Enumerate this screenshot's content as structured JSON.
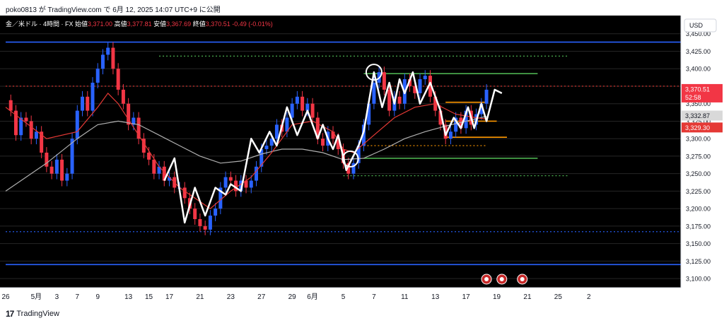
{
  "header": {
    "published_text": "poko0813 が TradingView.com で 6月 12, 2025 14:07 UTC+9 に公開"
  },
  "footer": {
    "brand": "TradingView"
  },
  "legend": {
    "symbol": "金／米ドル · 4時間 · FX",
    "open_label": "始値",
    "open": "3,371.00",
    "high_label": "高値",
    "high": "3,377.81",
    "low_label": "安値",
    "low": "3,367.69",
    "close_label": "終値",
    "close": "3,370.51",
    "change": "-0.49 (-0.01%)"
  },
  "currency_button": "USD",
  "price_labels": {
    "last": "3,370.51",
    "countdown": "52:58",
    "ma_slow": "3,332.87",
    "ma_fast": "3,329.30"
  },
  "colors": {
    "background": "#000000",
    "bull": "#2962ff",
    "bear": "#f23645",
    "ma_fast": "#e53935",
    "ma_slow": "#b0b0b0",
    "support_blue": "#2962ff",
    "green_level": "#4caf50",
    "orange_level": "#ff9800",
    "zigzag": "#ffffff"
  },
  "chart_data": {
    "type": "candlestick",
    "y_ticks": [
      3100,
      3125,
      3150,
      3175,
      3200,
      3225,
      3250,
      3275,
      3300,
      3325,
      3350,
      3375,
      3400,
      3425,
      3450
    ],
    "y_tick_labels": [
      "3,100.00",
      "3,125.00",
      "3,150.00",
      "3,175.00",
      "3,200.00",
      "3,225.00",
      "3,250.00",
      "3,275.00",
      "3,300.00",
      "3,325.00",
      "3,350.00",
      "3,375.00",
      "3,400.00",
      "3,425.00",
      "3,450.00"
    ],
    "ylim": [
      3087,
      3476
    ],
    "x_range": [
      0,
      66
    ],
    "x_ticks": [
      {
        "x": 0,
        "label": "26"
      },
      {
        "x": 3,
        "label": "5月"
      },
      {
        "x": 5,
        "label": "3"
      },
      {
        "x": 7,
        "label": "7"
      },
      {
        "x": 9,
        "label": "9"
      },
      {
        "x": 12,
        "label": "13"
      },
      {
        "x": 14,
        "label": "15"
      },
      {
        "x": 16,
        "label": "17"
      },
      {
        "x": 19,
        "label": "21"
      },
      {
        "x": 22,
        "label": "23"
      },
      {
        "x": 25,
        "label": "27"
      },
      {
        "x": 28,
        "label": "29"
      },
      {
        "x": 30,
        "label": "6月"
      },
      {
        "x": 33,
        "label": "5"
      },
      {
        "x": 36,
        "label": "7"
      },
      {
        "x": 39,
        "label": "11"
      },
      {
        "x": 42,
        "label": "13"
      },
      {
        "x": 45,
        "label": "17"
      },
      {
        "x": 48,
        "label": "19"
      },
      {
        "x": 51,
        "label": "21"
      },
      {
        "x": 54,
        "label": "25"
      },
      {
        "x": 57,
        "label": "2"
      }
    ],
    "close_path": [
      [
        0,
        3355
      ],
      [
        0.5,
        3340
      ],
      [
        1,
        3305
      ],
      [
        1.5,
        3330
      ],
      [
        2,
        3325
      ],
      [
        2.5,
        3300
      ],
      [
        3,
        3310
      ],
      [
        3.5,
        3280
      ],
      [
        4,
        3260
      ],
      [
        4.5,
        3250
      ],
      [
        5,
        3270
      ],
      [
        5.5,
        3240
      ],
      [
        6,
        3250
      ],
      [
        6.5,
        3300
      ],
      [
        7,
        3340
      ],
      [
        7.5,
        3360
      ],
      [
        8,
        3340
      ],
      [
        8.5,
        3380
      ],
      [
        9,
        3400
      ],
      [
        9.5,
        3420
      ],
      [
        10,
        3430
      ],
      [
        10.5,
        3400
      ],
      [
        11,
        3370
      ],
      [
        11.5,
        3350
      ],
      [
        12,
        3320
      ],
      [
        12.5,
        3330
      ],
      [
        13,
        3300
      ],
      [
        13.5,
        3280
      ],
      [
        14,
        3270
      ],
      [
        14.5,
        3250
      ],
      [
        15,
        3260
      ],
      [
        15.5,
        3240
      ],
      [
        16,
        3245
      ],
      [
        16.5,
        3230
      ],
      [
        17,
        3230
      ],
      [
        17.5,
        3215
      ],
      [
        18,
        3200
      ],
      [
        18.5,
        3185
      ],
      [
        19,
        3175
      ],
      [
        19.5,
        3170
      ],
      [
        20,
        3190
      ],
      [
        20.5,
        3200
      ],
      [
        21,
        3230
      ],
      [
        21.5,
        3245
      ],
      [
        22,
        3240
      ],
      [
        22.5,
        3225
      ],
      [
        23,
        3240
      ],
      [
        23.5,
        3230
      ],
      [
        24,
        3240
      ],
      [
        24.5,
        3260
      ],
      [
        25,
        3285
      ],
      [
        25.5,
        3290
      ],
      [
        26,
        3300
      ],
      [
        26.5,
        3320
      ],
      [
        27,
        3310
      ],
      [
        27.5,
        3330
      ],
      [
        28,
        3350
      ],
      [
        28.5,
        3360
      ],
      [
        29,
        3340
      ],
      [
        29.5,
        3350
      ],
      [
        30,
        3330
      ],
      [
        30.5,
        3300
      ],
      [
        31,
        3290
      ],
      [
        31.5,
        3310
      ],
      [
        32,
        3300
      ],
      [
        32.5,
        3285
      ],
      [
        33,
        3265
      ],
      [
        33.5,
        3250
      ],
      [
        34,
        3265
      ],
      [
        34.5,
        3290
      ],
      [
        35,
        3320
      ],
      [
        35.5,
        3350
      ],
      [
        36,
        3380
      ],
      [
        36.5,
        3395
      ],
      [
        37,
        3370
      ],
      [
        37.5,
        3340
      ],
      [
        38,
        3360
      ],
      [
        38.5,
        3350
      ],
      [
        39,
        3385
      ],
      [
        39.5,
        3375
      ],
      [
        40,
        3365
      ],
      [
        40.5,
        3385
      ],
      [
        41,
        3390
      ],
      [
        41.5,
        3360
      ],
      [
        42,
        3340
      ],
      [
        42.5,
        3320
      ],
      [
        43,
        3300
      ],
      [
        43.5,
        3310
      ],
      [
        44,
        3330
      ],
      [
        44.5,
        3315
      ],
      [
        45,
        3340
      ],
      [
        45.5,
        3320
      ],
      [
        46,
        3335
      ],
      [
        46.5,
        3350
      ],
      [
        47,
        3370
      ]
    ],
    "ma_fast_path": [
      [
        0,
        3345
      ],
      [
        4,
        3300
      ],
      [
        7,
        3310
      ],
      [
        9,
        3345
      ],
      [
        10,
        3365
      ],
      [
        11,
        3350
      ],
      [
        13,
        3305
      ],
      [
        15,
        3260
      ],
      [
        17,
        3230
      ],
      [
        19,
        3210
      ],
      [
        20,
        3200
      ],
      [
        22,
        3225
      ],
      [
        24,
        3245
      ],
      [
        26,
        3280
      ],
      [
        28,
        3320
      ],
      [
        30,
        3325
      ],
      [
        32,
        3310
      ],
      [
        33,
        3285
      ],
      [
        34,
        3280
      ],
      [
        36,
        3305
      ],
      [
        38,
        3330
      ],
      [
        40,
        3345
      ],
      [
        42,
        3350
      ],
      [
        44,
        3335
      ],
      [
        46,
        3330
      ],
      [
        47,
        3328
      ]
    ],
    "ma_slow_path": [
      [
        0,
        3225
      ],
      [
        4,
        3265
      ],
      [
        7,
        3300
      ],
      [
        9,
        3320
      ],
      [
        11,
        3325
      ],
      [
        13,
        3320
      ],
      [
        15,
        3305
      ],
      [
        17,
        3290
      ],
      [
        19,
        3275
      ],
      [
        21,
        3265
      ],
      [
        23,
        3268
      ],
      [
        25,
        3278
      ],
      [
        27,
        3285
      ],
      [
        29,
        3285
      ],
      [
        31,
        3280
      ],
      [
        33,
        3270
      ],
      [
        35,
        3272
      ],
      [
        37,
        3285
      ],
      [
        39,
        3300
      ],
      [
        41,
        3310
      ],
      [
        43,
        3318
      ],
      [
        45,
        3325
      ],
      [
        47,
        3332
      ]
    ],
    "zigzag": [
      [
        15.5,
        3240
      ],
      [
        16.5,
        3272
      ],
      [
        17.5,
        3180
      ],
      [
        18.5,
        3230
      ],
      [
        19.5,
        3190
      ],
      [
        20.5,
        3230
      ],
      [
        21.5,
        3220
      ],
      [
        22,
        3235
      ],
      [
        23,
        3225
      ],
      [
        24,
        3300
      ],
      [
        24.8,
        3280
      ],
      [
        25.8,
        3310
      ],
      [
        26.5,
        3290
      ],
      [
        27.5,
        3345
      ],
      [
        28.5,
        3305
      ],
      [
        29.5,
        3340
      ],
      [
        30.5,
        3300
      ],
      [
        31,
        3320
      ],
      [
        31.5,
        3300
      ],
      [
        32,
        3285
      ],
      [
        32.5,
        3305
      ],
      [
        33.3,
        3255
      ],
      [
        33.8,
        3270
      ],
      [
        34.5,
        3290
      ],
      [
        35,
        3310
      ],
      [
        36,
        3395
      ],
      [
        36.8,
        3345
      ],
      [
        37.5,
        3380
      ],
      [
        38,
        3350
      ],
      [
        38.5,
        3385
      ],
      [
        39,
        3365
      ],
      [
        39.8,
        3395
      ],
      [
        40.5,
        3350
      ],
      [
        41.5,
        3380
      ],
      [
        42.5,
        3340
      ],
      [
        43,
        3305
      ],
      [
        43.8,
        3330
      ],
      [
        44.5,
        3315
      ],
      [
        45.2,
        3345
      ],
      [
        45.8,
        3315
      ],
      [
        46.5,
        3350
      ],
      [
        47,
        3325
      ],
      [
        47.8,
        3370
      ],
      [
        48.5,
        3365
      ]
    ],
    "levels": [
      {
        "price": 3438,
        "x0": 0,
        "x1": 66,
        "style": "solid",
        "color": "support_blue"
      },
      {
        "price": 3120,
        "x0": 0,
        "x1": 66,
        "style": "solid",
        "color": "support_blue"
      },
      {
        "price": 3167,
        "x0": 0,
        "x1": 66,
        "style": "dotted",
        "color": "support_blue"
      },
      {
        "price": 3418,
        "x0": 15,
        "x1": 55,
        "style": "dotted",
        "color": "green_level"
      },
      {
        "price": 3393,
        "x0": 35,
        "x1": 52,
        "style": "solid",
        "color": "green_level"
      },
      {
        "price": 3272,
        "x0": 35,
        "x1": 52,
        "style": "solid",
        "color": "green_level"
      },
      {
        "price": 3247,
        "x0": 33,
        "x1": 55,
        "style": "dotted",
        "color": "green_level"
      },
      {
        "price": 3375,
        "x0": 0,
        "x1": 66,
        "style": "dotted",
        "color": "ma_fast"
      },
      {
        "price": 3352,
        "x0": 43,
        "x1": 47,
        "style": "solid",
        "color": "orange_level"
      },
      {
        "price": 3325,
        "x0": 43,
        "x1": 48,
        "style": "solid",
        "color": "orange_level"
      },
      {
        "price": 3302,
        "x0": 43,
        "x1": 49,
        "style": "solid",
        "color": "orange_level"
      },
      {
        "price": 3290,
        "x0": 35,
        "x1": 47,
        "style": "dotted",
        "color": "orange_level"
      }
    ],
    "circles": [
      {
        "x": 36,
        "y": 3395
      },
      {
        "x": 33.7,
        "y": 3271
      }
    ],
    "event_markers": [
      47,
      48.5,
      50.5
    ]
  }
}
